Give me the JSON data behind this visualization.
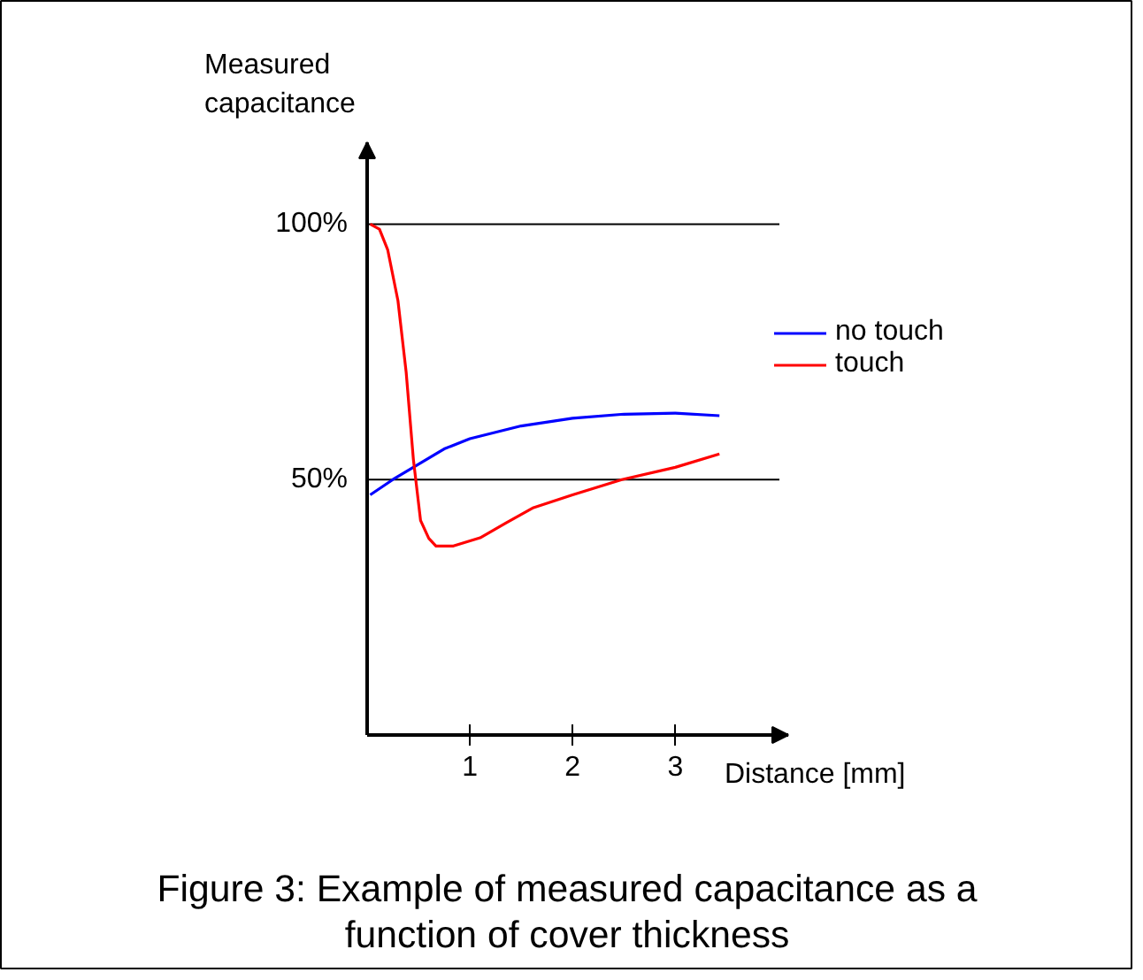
{
  "chart_data": {
    "type": "line",
    "title": "Figure 3: Example of measured capacitance as a function of cover thickness",
    "xlabel": "Distance [mm]",
    "ylabel": "Measured capacitance",
    "xlim": [
      0,
      4.1
    ],
    "ylim": [
      0,
      116
    ],
    "xticks": [
      1,
      2,
      3
    ],
    "yticks": [
      {
        "value": 50,
        "label": "50%"
      },
      {
        "value": 100,
        "label": "100%"
      }
    ],
    "grid": "y",
    "legend": "right",
    "series": [
      {
        "name": "no touch",
        "color": "#0000ff",
        "x": [
          0.03,
          0.25,
          0.5,
          0.75,
          1,
          1.5,
          2,
          2.5,
          3,
          3.43
        ],
        "values": [
          47,
          50,
          53,
          56,
          58,
          60.5,
          62,
          62.8,
          63,
          62.5
        ]
      },
      {
        "name": "touch",
        "color": "#ff0000",
        "x": [
          0.03,
          0.12,
          0.2,
          0.3,
          0.38,
          0.45,
          0.52,
          0.6,
          0.67,
          0.84,
          1.1,
          1.35,
          1.62,
          2,
          2.48,
          3,
          3.43
        ],
        "values": [
          100,
          99,
          95,
          85,
          71,
          54,
          42,
          38.5,
          37,
          37,
          38.6,
          41.5,
          44.5,
          47,
          50,
          52.4,
          55
        ]
      }
    ]
  }
}
